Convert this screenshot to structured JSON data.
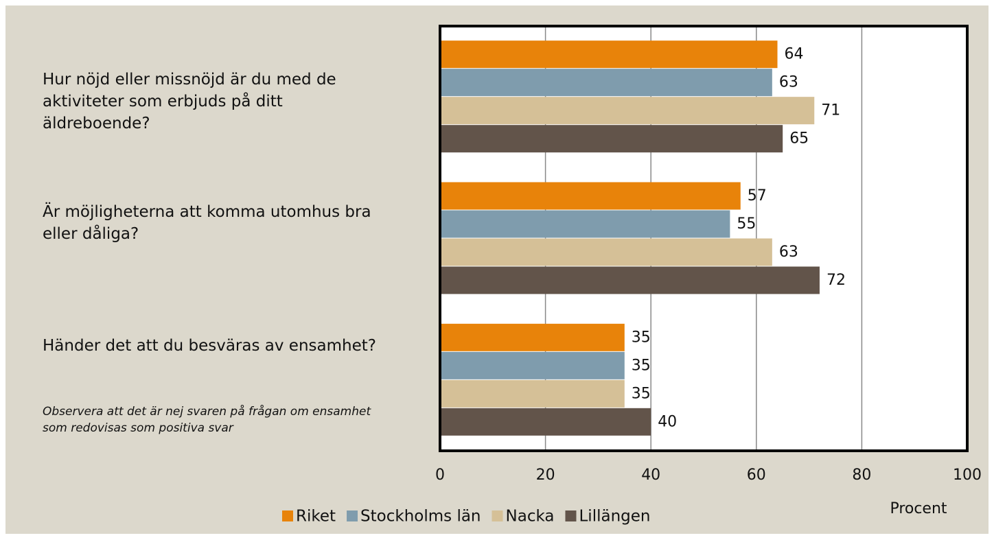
{
  "chart_data": {
    "type": "bar",
    "orientation": "horizontal",
    "categories": [
      "Hur nöjd eller missnöjd är du med de aktiviteter som erbjuds på ditt äldreboende?",
      "Är möjligheterna att komma utomhus bra eller dåliga?",
      "Händer det att du besväras av ensamhet?"
    ],
    "series": [
      {
        "name": "Riket",
        "color": "#e8830a",
        "values": [
          64,
          57,
          35
        ]
      },
      {
        "name": "Stockholms län",
        "color": "#7f9cad",
        "values": [
          63,
          55,
          35
        ]
      },
      {
        "name": "Nacka",
        "color": "#d5c097",
        "values": [
          71,
          63,
          35
        ]
      },
      {
        "name": "Lillängen",
        "color": "#62544a",
        "values": [
          65,
          72,
          40
        ]
      }
    ],
    "xlim": [
      0,
      100
    ],
    "xticks": [
      0,
      20,
      40,
      60,
      80,
      100
    ],
    "grid": true,
    "xlabel": "Procent",
    "annotation": "Observera att det är nej svaren på frågan om ensamhet som redovisas som positiva svar",
    "legend": "bottom"
  }
}
